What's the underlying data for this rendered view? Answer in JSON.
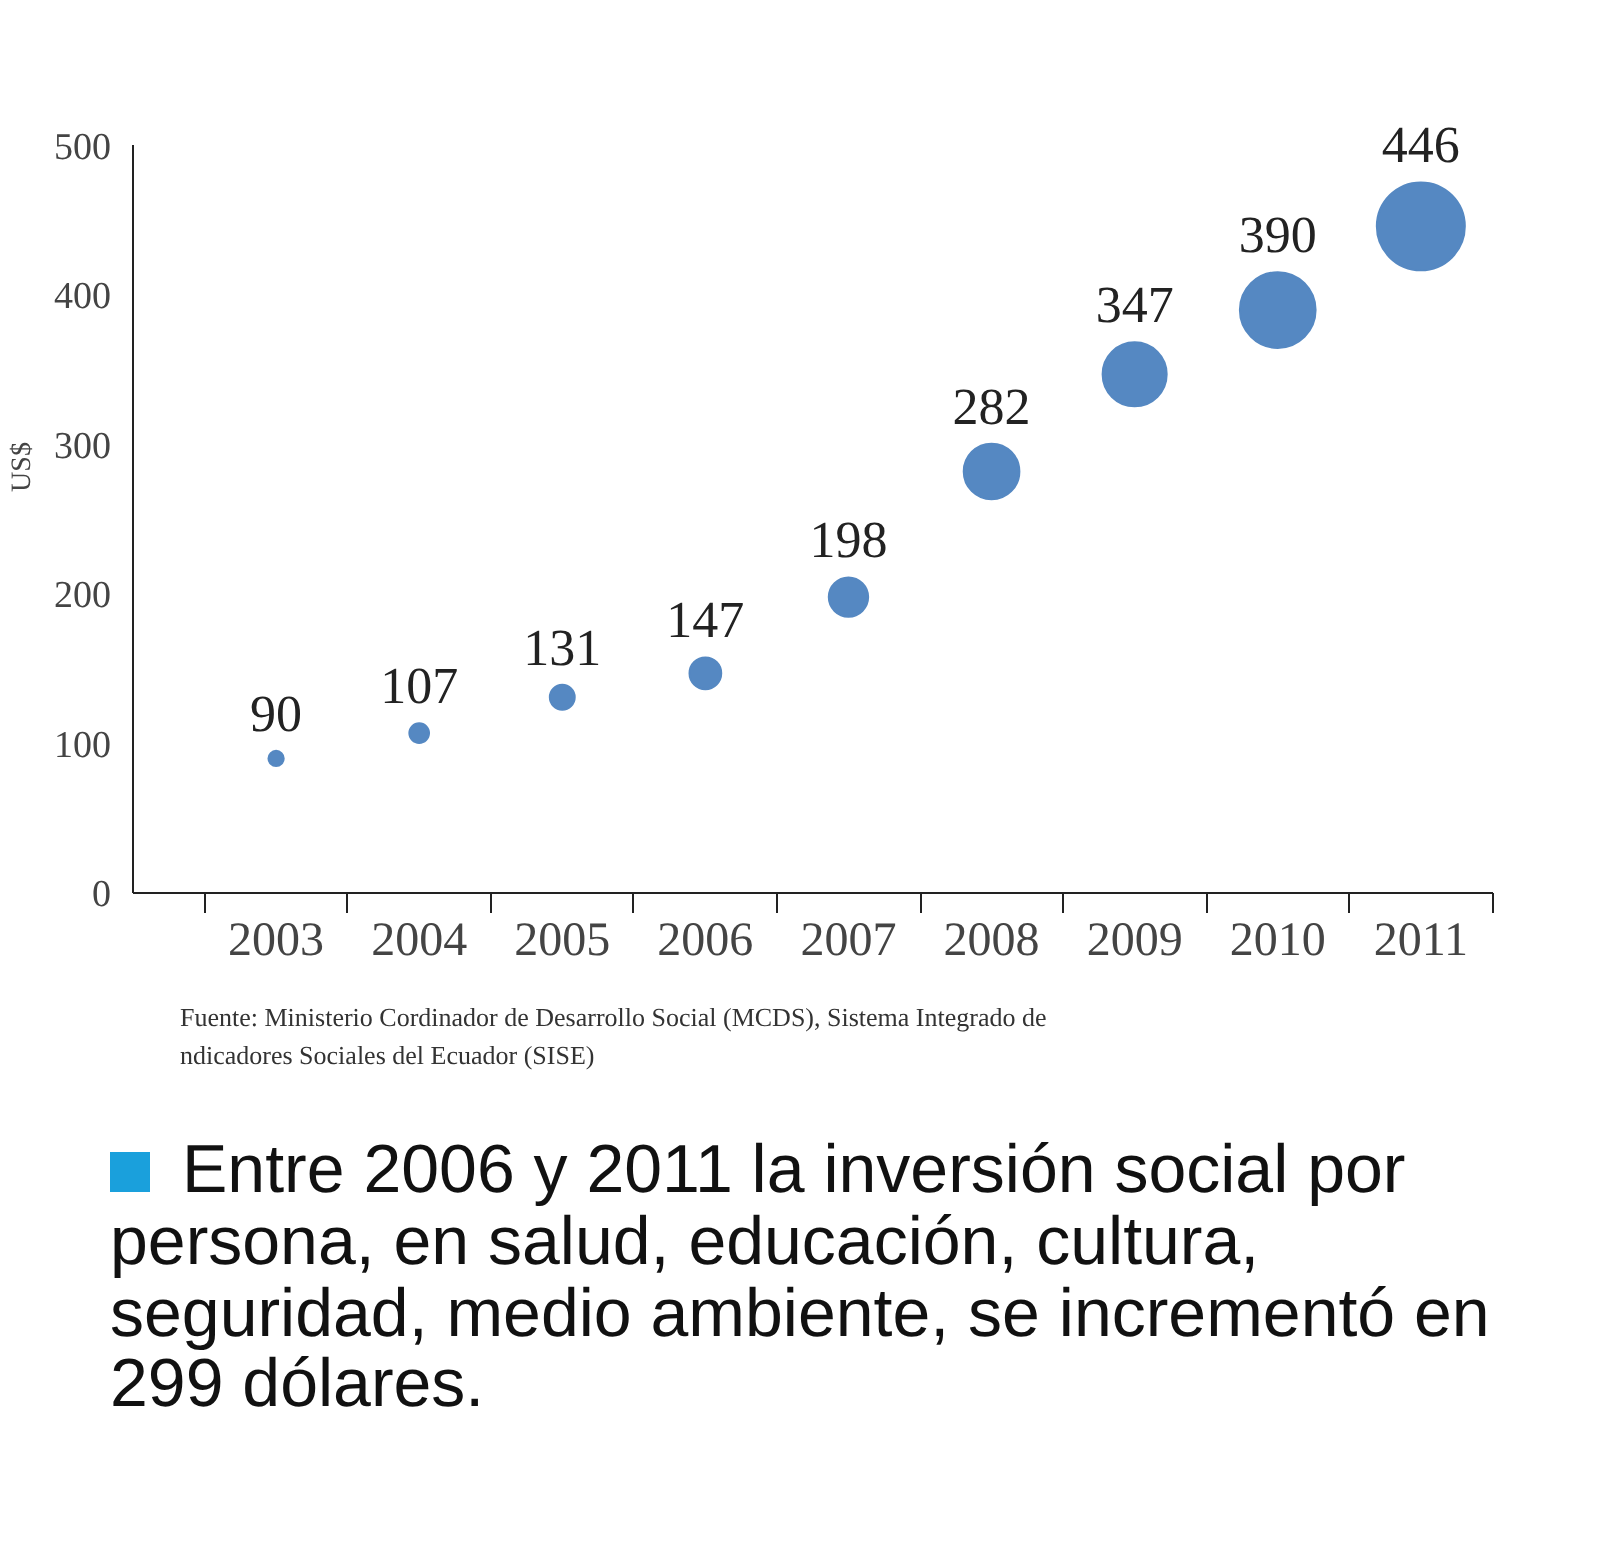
{
  "chart_data": {
    "type": "bubble",
    "categories": [
      "2003",
      "2004",
      "2005",
      "2006",
      "2007",
      "2008",
      "2009",
      "2010",
      "2011"
    ],
    "values": [
      90,
      107,
      131,
      147,
      198,
      282,
      347,
      390,
      446
    ],
    "sizes": [
      0.03,
      0.05,
      0.08,
      0.13,
      0.2,
      0.4,
      0.53,
      0.74,
      1
    ],
    "color": "#5588c2",
    "ylabel": "US$",
    "ylim": [
      0,
      500
    ],
    "yticks": [
      0,
      100,
      200,
      300,
      400,
      500
    ],
    "data_labels": true,
    "grid": false,
    "annotations": [
      "Fuente: Ministerio Cordinador de Desarrollo Social (MCDS), Sistema Integrado de ndicadores Sociales del Ecuador (SISE)",
      "Entre 2006 y 2011 la inversión social por persona, en salud, educación, cultura, seguridad, medio ambiente, se incrementó en 299 dólares."
    ]
  }
}
